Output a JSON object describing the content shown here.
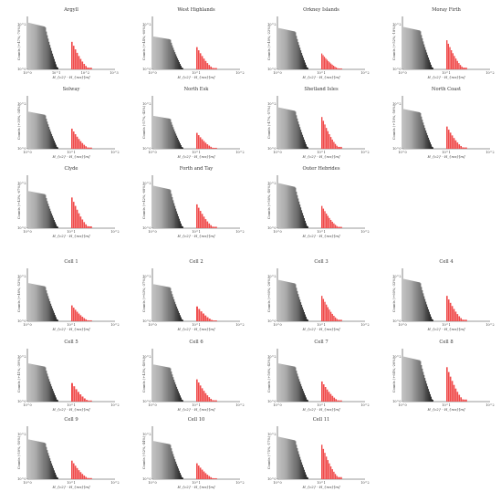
{
  "chart_data": [
    {
      "type": "bar",
      "title": "Argyll",
      "ylabel": "Counts (+47%,-70%)",
      "xlabel": "H_{c2} - H_{res}[m]",
      "xticks": [
        "10^0",
        "10^1",
        "10^2",
        "10^3"
      ],
      "ylabel_ticks": [
        "10^0",
        "10^2"
      ],
      "gray_bars": 34,
      "gray_peak": 0.88,
      "red_bars": 12,
      "red_peak": 0.52,
      "y_axis_visible": true
    },
    {
      "type": "bar",
      "title": "West Highlands",
      "ylabel": "Counts (+44%,-60%)",
      "xlabel": "H_{c2} - H_{res}[m]",
      "xticks": [
        "10^0",
        "10^1",
        "10^2"
      ],
      "ylabel_ticks": [
        "10^0",
        "10^2"
      ],
      "gray_bars": 34,
      "gray_peak": 0.62,
      "red_bars": 12,
      "red_peak": 0.42,
      "y_axis_visible": true
    },
    {
      "type": "bar",
      "title": "Orkney Islands",
      "ylabel": "Counts (+49%,-22%)",
      "xlabel": "H_{c2} - H_{res}[m]",
      "xticks": [
        "10^0",
        "10^1",
        "10^2"
      ],
      "ylabel_ticks": [
        "10^0",
        "10^2"
      ],
      "gray_bars": 34,
      "gray_peak": 0.78,
      "red_bars": 16,
      "red_peak": 0.3,
      "y_axis_visible": true
    },
    {
      "type": "bar",
      "title": "Moray Firth",
      "ylabel": "Counts (+52%,-18%)",
      "xlabel": "H_{c2} - H_{res}[m]",
      "xticks": [
        "10^0",
        "10^1",
        "10^2"
      ],
      "ylabel_ticks": [
        "10^0",
        "10^2"
      ],
      "gray_bars": 34,
      "gray_peak": 0.8,
      "red_bars": 14,
      "red_peak": 0.55,
      "y_axis_visible": true
    },
    {
      "type": "bar",
      "title": "Solway",
      "ylabel": "Counts (+39%,-34%)",
      "xlabel": "H_{c2} - H_{res}[m]",
      "xticks": [
        "10^0",
        "10^1",
        "10^2"
      ],
      "ylabel_ticks": [
        "10^0",
        "10^2"
      ],
      "gray_bars": 34,
      "gray_peak": 0.7,
      "red_bars": 12,
      "red_peak": 0.38,
      "y_axis_visible": true
    },
    {
      "type": "bar",
      "title": "North Esk",
      "ylabel": "Counts (-57%,-42%)",
      "xlabel": "H_{c2} - H_{res}[m]",
      "xticks": [
        "10^0",
        "10^1",
        "10^2"
      ],
      "ylabel_ticks": [
        "10^0",
        "10^2"
      ],
      "gray_bars": 34,
      "gray_peak": 0.62,
      "red_bars": 12,
      "red_peak": 0.3,
      "y_axis_visible": true
    },
    {
      "type": "bar",
      "title": "Shetland Isles",
      "ylabel": "Counts (-47%,-57%)",
      "xlabel": "H_{c2} - H_{res}[m]",
      "xticks": [
        "10^0",
        "10^1",
        "10^2"
      ],
      "ylabel_ticks": [
        "10^0",
        "10^2"
      ],
      "gray_bars": 34,
      "gray_peak": 0.78,
      "red_bars": 14,
      "red_peak": 0.6,
      "y_axis_visible": true
    },
    {
      "type": "bar",
      "title": "North Coast",
      "ylabel": "Counts (+19%,-56%)",
      "xlabel": "H_{c2} - H_{res}[m]",
      "xticks": [
        "10^0",
        "10^1",
        "10^2"
      ],
      "ylabel_ticks": [
        "10^0",
        "10^2"
      ],
      "gray_bars": 34,
      "gray_peak": 0.75,
      "red_bars": 12,
      "red_peak": 0.42,
      "y_axis_visible": true
    },
    {
      "type": "bar",
      "title": "Clyde",
      "ylabel": "Counts (+43%,-67%)",
      "xlabel": "H_{c2} - H_{res}[m]",
      "xticks": [
        "10^0",
        "10^1",
        "10^2"
      ],
      "ylabel_ticks": [
        "10^0",
        "10^2"
      ],
      "gray_bars": 34,
      "gray_peak": 0.7,
      "red_bars": 12,
      "red_peak": 0.58,
      "y_axis_visible": true
    },
    {
      "type": "bar",
      "title": "Forth and Tay",
      "ylabel": "Counts (+42%,-68%)",
      "xlabel": "H_{c2} - H_{res}[m]",
      "xticks": [
        "10^0",
        "10^1",
        "10^2"
      ],
      "ylabel_ticks": [
        "10^0",
        "10^2"
      ],
      "gray_bars": 34,
      "gray_peak": 0.8,
      "red_bars": 12,
      "red_peak": 0.45,
      "y_axis_visible": true
    },
    {
      "type": "bar",
      "title": "Outer Hebrides",
      "ylabel": "Counts (+56%,-40%)",
      "xlabel": "H_{c2} - H_{res}[m]",
      "xticks": [
        "10^0",
        "10^1",
        "10^2"
      ],
      "ylabel_ticks": [
        "10^0",
        "10^2"
      ],
      "gray_bars": 34,
      "gray_peak": 0.85,
      "red_bars": 14,
      "red_peak": 0.42,
      "y_axis_visible": true
    },
    {
      "type": "bar",
      "title": "Cell 1",
      "ylabel": "Counts (+46%,-52%)",
      "xlabel": "H_{c2} - H_{res}[m]",
      "xticks": [
        "10^0",
        "10^1",
        "10^2"
      ],
      "ylabel_ticks": [
        "10^0",
        "10^2"
      ],
      "gray_bars": 34,
      "gray_peak": 0.72,
      "red_bars": 12,
      "red_peak": 0.3,
      "y_axis_visible": true
    },
    {
      "type": "bar",
      "title": "Cell 2",
      "ylabel": "Counts (+63%,-37%)",
      "xlabel": "H_{c2} - H_{res}[m]",
      "xticks": [
        "10^0",
        "10^1",
        "10^2"
      ],
      "ylabel_ticks": [
        "10^0",
        "10^2"
      ],
      "gray_bars": 34,
      "gray_peak": 0.7,
      "red_bars": 10,
      "red_peak": 0.28,
      "y_axis_visible": true
    },
    {
      "type": "bar",
      "title": "Cell 3",
      "ylabel": "Counts (+60%,-26%)",
      "xlabel": "H_{c2} - H_{res}[m]",
      "xticks": [
        "10^0",
        "10^1",
        "10^2"
      ],
      "ylabel_ticks": [
        "10^0",
        "10^2"
      ],
      "gray_bars": 34,
      "gray_peak": 0.78,
      "red_bars": 14,
      "red_peak": 0.48,
      "y_axis_visible": true
    },
    {
      "type": "bar",
      "title": "Cell 4",
      "ylabel": "Counts (+60%,-32%)",
      "xlabel": "H_{c2} - H_{res}[m]",
      "xticks": [
        "10^0",
        "10^1",
        "10^2"
      ],
      "ylabel_ticks": [
        "10^0",
        "10^2"
      ],
      "gray_bars": 34,
      "gray_peak": 0.8,
      "red_bars": 12,
      "red_peak": 0.48,
      "y_axis_visible": true
    },
    {
      "type": "bar",
      "title": "Cell 5",
      "ylabel": "Counts (+41%,-39%)",
      "xlabel": "H_{c2} - H_{res}[m]",
      "xticks": [
        "10^0",
        "10^1",
        "10^2"
      ],
      "ylabel_ticks": [
        "10^0",
        "10^2"
      ],
      "gray_bars": 34,
      "gray_peak": 0.72,
      "red_bars": 10,
      "red_peak": 0.35,
      "y_axis_visible": true
    },
    {
      "type": "bar",
      "title": "Cell 6",
      "ylabel": "Counts (+43%,-40%)",
      "xlabel": "H_{c2} - H_{res}[m]",
      "xticks": [
        "10^0",
        "10^1",
        "10^2"
      ],
      "ylabel_ticks": [
        "10^0",
        "10^2"
      ],
      "gray_bars": 34,
      "gray_peak": 0.7,
      "red_bars": 12,
      "red_peak": 0.42,
      "y_axis_visible": true
    },
    {
      "type": "bar",
      "title": "Cell 7",
      "ylabel": "Counts (+56%,-42%)",
      "xlabel": "H_{c2} - H_{res}[m]",
      "xticks": [
        "10^0",
        "10^1",
        "10^2"
      ],
      "ylabel_ticks": [
        "10^0",
        "10^2"
      ],
      "gray_bars": 34,
      "gray_peak": 0.72,
      "red_bars": 12,
      "red_peak": 0.38,
      "y_axis_visible": true
    },
    {
      "type": "bar",
      "title": "Cell 8",
      "ylabel": "Counts (+64%,-26%)",
      "xlabel": "H_{c2} - H_{res}[m]",
      "xticks": [
        "10^0",
        "10^1",
        "10^2"
      ],
      "ylabel_ticks": [
        "10^0",
        "10^2"
      ],
      "gray_bars": 34,
      "gray_peak": 0.85,
      "red_bars": 12,
      "red_peak": 0.65,
      "y_axis_visible": true
    },
    {
      "type": "bar",
      "title": "Cell 9",
      "ylabel": "Counts (-59%,-50%)",
      "xlabel": "H_{c2} - H_{res}[m]",
      "xticks": [
        "10^0",
        "10^1",
        "10^2"
      ],
      "ylabel_ticks": [
        "10^0",
        "10^2"
      ],
      "gray_bars": 34,
      "gray_peak": 0.75,
      "red_bars": 12,
      "red_peak": 0.35,
      "y_axis_visible": true
    },
    {
      "type": "bar",
      "title": "Cell 10",
      "ylabel": "Counts (-52%,-44%)",
      "xlabel": "H_{c2} - H_{res}[m]",
      "xticks": [
        "10^0",
        "10^1",
        "10^2"
      ],
      "ylabel_ticks": [
        "10^0",
        "10^2"
      ],
      "gray_bars": 34,
      "gray_peak": 0.72,
      "red_bars": 12,
      "red_peak": 0.3,
      "y_axis_visible": true
    },
    {
      "type": "bar",
      "title": "Cell 11",
      "ylabel": "Counts (-75%,-17%)",
      "xlabel": "H_{c2} - H_{res}[m]",
      "xticks": [
        "10^0",
        "10^1",
        "10^2"
      ],
      "ylabel_ticks": [
        "10^0",
        "10^2"
      ],
      "gray_bars": 34,
      "gray_peak": 0.8,
      "red_bars": 14,
      "red_peak": 0.65,
      "y_axis_visible": true
    }
  ],
  "colors": {
    "gray_light": "#bdbdbd",
    "gray_dark": "#1a1a1a",
    "red": "#f04b4b",
    "axis": "#333333"
  }
}
